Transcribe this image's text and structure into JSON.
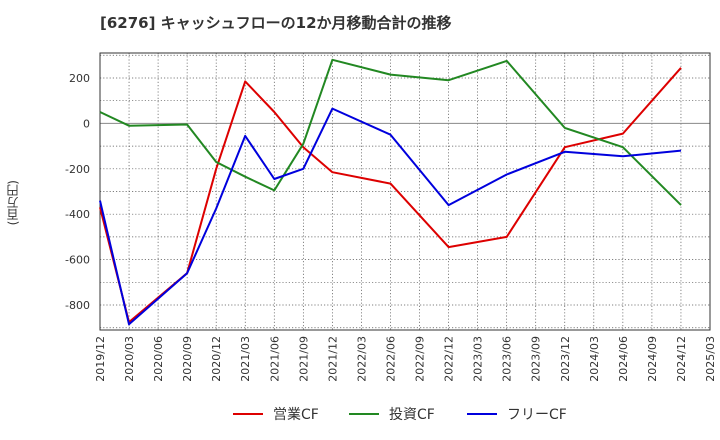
{
  "chart_data": {
    "type": "line",
    "title": "[6276]  キャッシュフローの12か月移動合計の推移",
    "ylabel": "(百万円)",
    "xlabel": "",
    "ylim": [
      -910,
      310
    ],
    "yticks": [
      200,
      0,
      -200,
      -400,
      -600,
      -800
    ],
    "categories": [
      "2019/12",
      "2020/03",
      "2020/06",
      "2020/09",
      "2020/12",
      "2021/03",
      "2021/06",
      "2021/09",
      "2021/12",
      "2022/03",
      "2022/06",
      "2022/09",
      "2022/12",
      "2023/03",
      "2023/06",
      "2023/09",
      "2023/12",
      "2024/03",
      "2024/06",
      "2024/09",
      "2024/12",
      "2025/03"
    ],
    "series": [
      {
        "name": "営業CF",
        "color": "#dd0000",
        "points": [
          [
            "2019/12",
            -370
          ],
          [
            "2020/03",
            -875
          ],
          [
            "2020/09",
            -660
          ],
          [
            "2020/12",
            -200
          ],
          [
            "2021/03",
            185
          ],
          [
            "2021/06",
            50
          ],
          [
            "2021/09",
            -105
          ],
          [
            "2021/12",
            -215
          ],
          [
            "2022/06",
            -265
          ],
          [
            "2022/12",
            -545
          ],
          [
            "2023/06",
            -500
          ],
          [
            "2023/12",
            -105
          ],
          [
            "2024/06",
            -45
          ],
          [
            "2024/12",
            245
          ]
        ]
      },
      {
        "name": "投資CF",
        "color": "#228822",
        "points": [
          [
            "2019/12",
            50
          ],
          [
            "2020/03",
            -10
          ],
          [
            "2020/09",
            -5
          ],
          [
            "2020/12",
            -170
          ],
          [
            "2021/03",
            -235
          ],
          [
            "2021/06",
            -295
          ],
          [
            "2021/09",
            -90
          ],
          [
            "2021/12",
            280
          ],
          [
            "2022/06",
            215
          ],
          [
            "2022/12",
            190
          ],
          [
            "2023/06",
            275
          ],
          [
            "2023/12",
            -20
          ],
          [
            "2024/06",
            -105
          ],
          [
            "2024/12",
            -360
          ]
        ]
      },
      {
        "name": "フリーCF",
        "color": "#0000dd",
        "points": [
          [
            "2019/12",
            -340
          ],
          [
            "2020/03",
            -885
          ],
          [
            "2020/09",
            -660
          ],
          [
            "2020/12",
            -375
          ],
          [
            "2021/03",
            -55
          ],
          [
            "2021/06",
            -245
          ],
          [
            "2021/09",
            -200
          ],
          [
            "2021/12",
            65
          ],
          [
            "2022/06",
            -50
          ],
          [
            "2022/12",
            -360
          ],
          [
            "2023/06",
            -225
          ],
          [
            "2023/12",
            -125
          ],
          [
            "2024/06",
            -145
          ],
          [
            "2024/12",
            -120
          ]
        ]
      }
    ],
    "grid": true,
    "legend": "bottom"
  }
}
